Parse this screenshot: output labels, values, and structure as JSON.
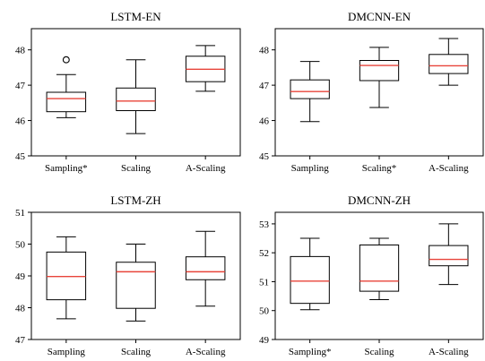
{
  "chart_data": [
    {
      "type": "box",
      "title": "LSTM-EN",
      "categories": [
        "Sampling*",
        "Scaling",
        "A-Scaling"
      ],
      "ylim": [
        45,
        48.6
      ],
      "yticks": [
        "45",
        "46",
        "47",
        "48"
      ],
      "boxes": [
        {
          "min": 46.08,
          "q1": 46.25,
          "median": 46.62,
          "q3": 46.8,
          "max": 47.3,
          "fliers": [
            47.72
          ]
        },
        {
          "min": 45.63,
          "q1": 46.28,
          "median": 46.55,
          "q3": 46.92,
          "max": 47.72,
          "fliers": []
        },
        {
          "min": 46.83,
          "q1": 47.1,
          "median": 47.45,
          "q3": 47.82,
          "max": 48.12,
          "fliers": []
        }
      ]
    },
    {
      "type": "box",
      "title": "DMCNN-EN",
      "categories": [
        "Sampling",
        "Scaling*",
        "A-Scaling"
      ],
      "ylim": [
        45,
        48.6
      ],
      "yticks": [
        "45",
        "46",
        "47",
        "48"
      ],
      "boxes": [
        {
          "min": 45.97,
          "q1": 46.62,
          "median": 46.82,
          "q3": 47.15,
          "max": 47.67,
          "fliers": []
        },
        {
          "min": 46.37,
          "q1": 47.13,
          "median": 47.56,
          "q3": 47.7,
          "max": 48.07,
          "fliers": []
        },
        {
          "min": 47.0,
          "q1": 47.33,
          "median": 47.55,
          "q3": 47.87,
          "max": 48.32,
          "fliers": []
        }
      ]
    },
    {
      "type": "box",
      "title": "LSTM-ZH",
      "categories": [
        "Sampling",
        "Scaling",
        "A-Scaling"
      ],
      "ylim": [
        47,
        51
      ],
      "yticks": [
        "47",
        "48",
        "49",
        "50",
        "51"
      ],
      "boxes": [
        {
          "min": 47.65,
          "q1": 48.25,
          "median": 48.98,
          "q3": 49.75,
          "max": 50.23,
          "fliers": []
        },
        {
          "min": 47.58,
          "q1": 47.98,
          "median": 49.13,
          "q3": 49.43,
          "max": 50.0,
          "fliers": []
        },
        {
          "min": 48.05,
          "q1": 48.88,
          "median": 49.13,
          "q3": 49.6,
          "max": 50.4,
          "fliers": []
        }
      ]
    },
    {
      "type": "box",
      "title": "DMCNN-ZH",
      "categories": [
        "Sampling*",
        "Scaling",
        "A-Scaling"
      ],
      "ylim": [
        49,
        53.4
      ],
      "yticks": [
        "49",
        "50",
        "51",
        "52",
        "53"
      ],
      "boxes": [
        {
          "min": 50.03,
          "q1": 50.25,
          "median": 51.02,
          "q3": 51.87,
          "max": 52.5,
          "fliers": []
        },
        {
          "min": 50.38,
          "q1": 50.67,
          "median": 51.02,
          "q3": 52.27,
          "max": 52.5,
          "fliers": []
        },
        {
          "min": 50.9,
          "q1": 51.55,
          "median": 51.77,
          "q3": 52.25,
          "max": 53.0,
          "fliers": []
        }
      ]
    }
  ]
}
